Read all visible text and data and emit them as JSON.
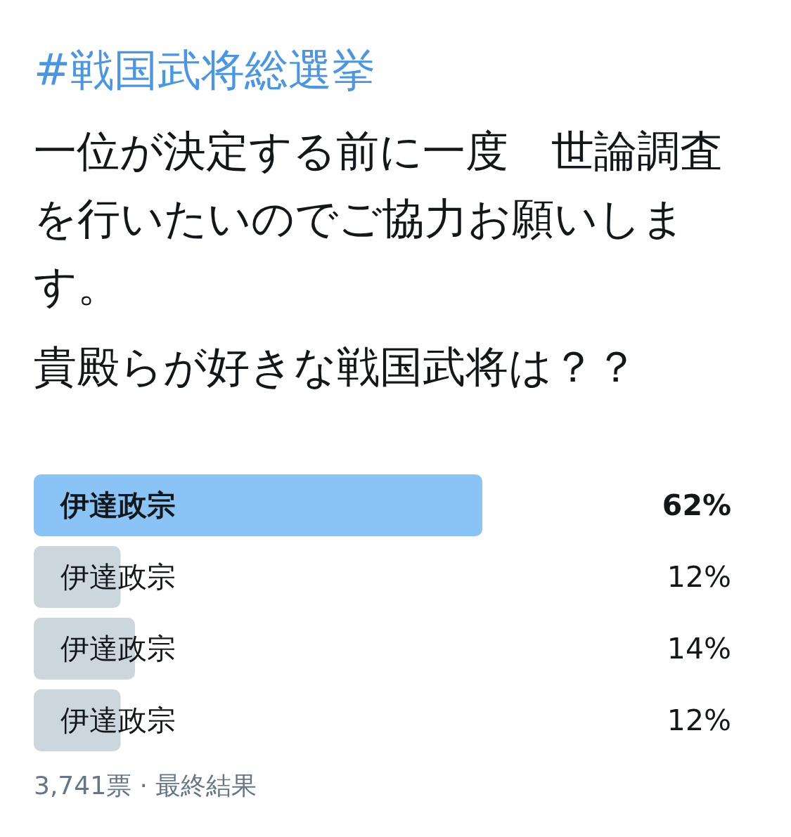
{
  "chart_data": {
    "type": "bar",
    "orientation": "horizontal",
    "title": "#戦国武将総選挙",
    "subtitle": "一位が決定する前に一度　世論調査を行いたいのでご協力お願いします。",
    "annotations": [
      "貴殿らが好きな戦国武将は？？",
      "3,741票 · 最終結果"
    ],
    "categories": [
      "伊達政宗",
      "伊達政宗",
      "伊達政宗",
      "伊達政宗"
    ],
    "values": [
      62,
      12,
      14,
      12
    ],
    "value_labels": [
      "62%",
      "12%",
      "14%",
      "12%"
    ],
    "colors": [
      "#8ac4f6",
      "#ccd6dd",
      "#ccd6dd",
      "#ccd6dd"
    ]
  }
}
